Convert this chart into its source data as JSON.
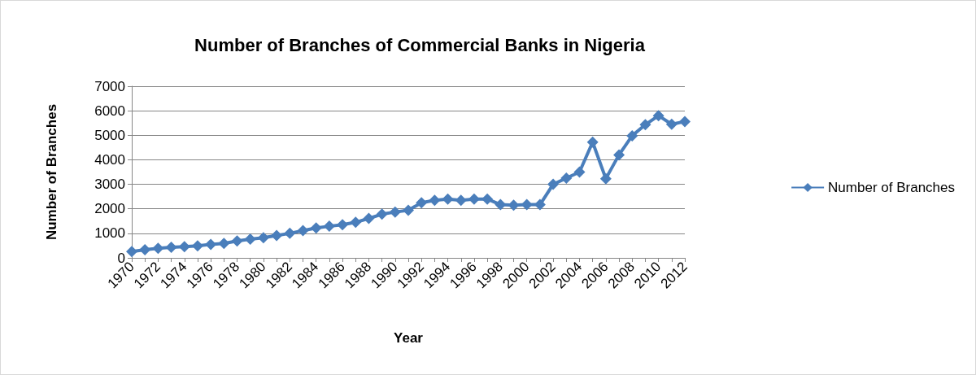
{
  "chart_data": {
    "type": "line",
    "title": "Number of Branches of Commercial Banks in Nigeria",
    "xlabel": "Year",
    "ylabel": "Number of Branches",
    "categories": [
      "1970",
      null,
      "1972",
      null,
      "1974",
      null,
      "1976",
      null,
      "1978",
      null,
      "1980",
      null,
      "1982",
      null,
      "1984",
      null,
      "1986",
      null,
      "1988",
      null,
      "1990",
      null,
      "1992",
      null,
      "1994",
      null,
      "1996",
      null,
      "1998",
      null,
      "2000",
      null,
      "2002",
      null,
      "2004",
      null,
      "2006",
      null,
      "2008",
      null,
      "2010",
      null,
      "2012"
    ],
    "series": [
      {
        "name": "Number of Branches",
        "color": "#4a7ebb",
        "values": [
          260,
          330,
          390,
          430,
          460,
          490,
          550,
          590,
          690,
          760,
          820,
          910,
          1000,
          1110,
          1220,
          1290,
          1350,
          1450,
          1610,
          1780,
          1870,
          1940,
          2250,
          2350,
          2400,
          2350,
          2400,
          2400,
          2170,
          2150,
          2170,
          2170,
          3000,
          3250,
          3500,
          4720,
          3230,
          4200,
          4980,
          5430,
          5800,
          5450,
          5560
        ]
      }
    ],
    "ylim": [
      0,
      7000
    ],
    "yticks": [
      0,
      1000,
      2000,
      3000,
      4000,
      5000,
      6000,
      7000
    ],
    "grid": "y",
    "legend": "right",
    "marker": "diamond",
    "line_style": "solid"
  }
}
